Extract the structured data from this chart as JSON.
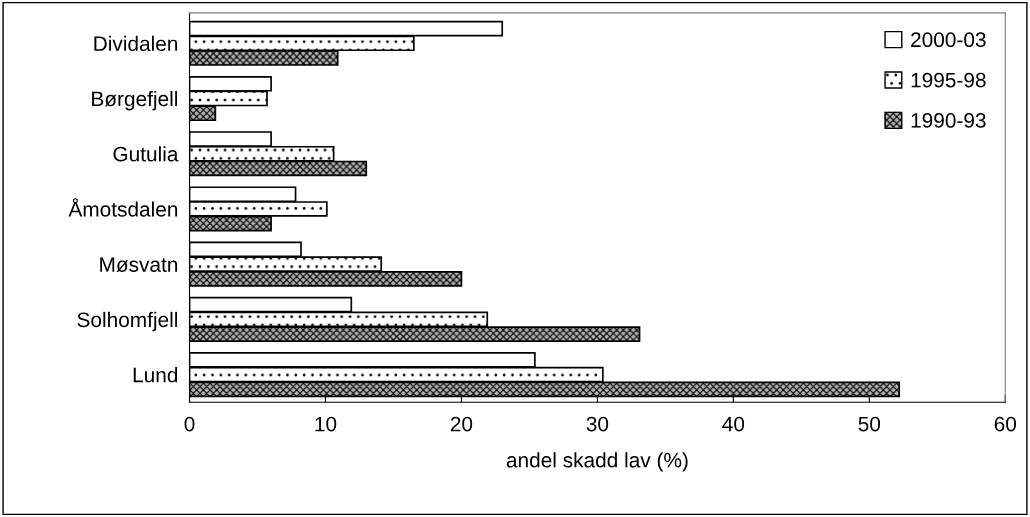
{
  "chart_data": {
    "type": "bar",
    "orientation": "horizontal",
    "xlabel": "andel skadd lav (%)",
    "categories": [
      "Dividalen",
      "Børgefjell",
      "Gutulia",
      "Åmotsdalen",
      "Møsvatn",
      "Solhomfjell",
      "Lund"
    ],
    "series": [
      {
        "name": "2000-03",
        "color": "#ffffff",
        "values": [
          23.0,
          6.0,
          6.0,
          7.8,
          8.2,
          11.9,
          25.4
        ]
      },
      {
        "name": "1995-98",
        "color": "#ffffff",
        "values": [
          16.5,
          5.7,
          10.6,
          10.1,
          14.1,
          21.9,
          30.4
        ]
      },
      {
        "name": "1990-93",
        "color": "#b0b0b0",
        "values": [
          10.9,
          1.9,
          13.0,
          6.0,
          20.0,
          33.1,
          52.2
        ]
      }
    ],
    "xlim": [
      0,
      60
    ],
    "xticks": [
      0,
      10,
      20,
      30,
      40,
      50,
      60
    ],
    "grid": false,
    "legend": "top right"
  }
}
